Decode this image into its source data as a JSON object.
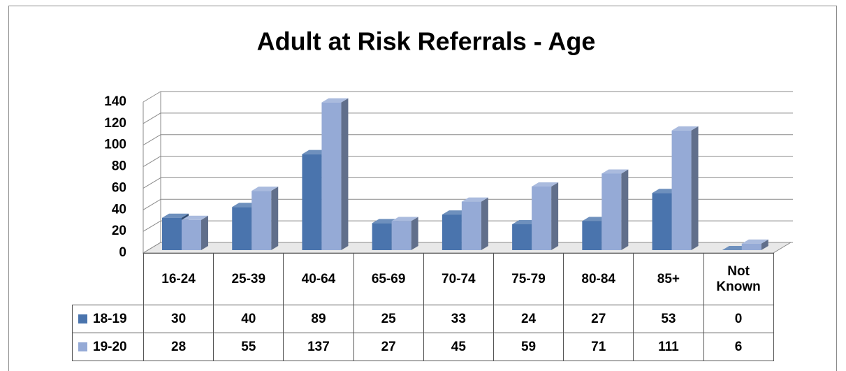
{
  "chart_data": {
    "type": "bar3d",
    "title": "Adult at Risk Referrals - Age",
    "categories": [
      "16-24",
      "25-39",
      "40-64",
      "65-69",
      "70-74",
      "75-79",
      "80-84",
      "85+",
      "Not Known"
    ],
    "series": [
      {
        "name": "18-19",
        "color": "#4a74ad",
        "values": [
          30,
          40,
          89,
          25,
          33,
          24,
          27,
          53,
          0
        ]
      },
      {
        "name": "19-20",
        "color": "#95aad6",
        "values": [
          28,
          55,
          137,
          27,
          45,
          59,
          71,
          111,
          6
        ]
      }
    ],
    "ylim": [
      0,
      140
    ],
    "yticks": [
      0,
      20,
      40,
      60,
      80,
      100,
      120,
      140
    ],
    "grid": true,
    "data_table": true
  }
}
